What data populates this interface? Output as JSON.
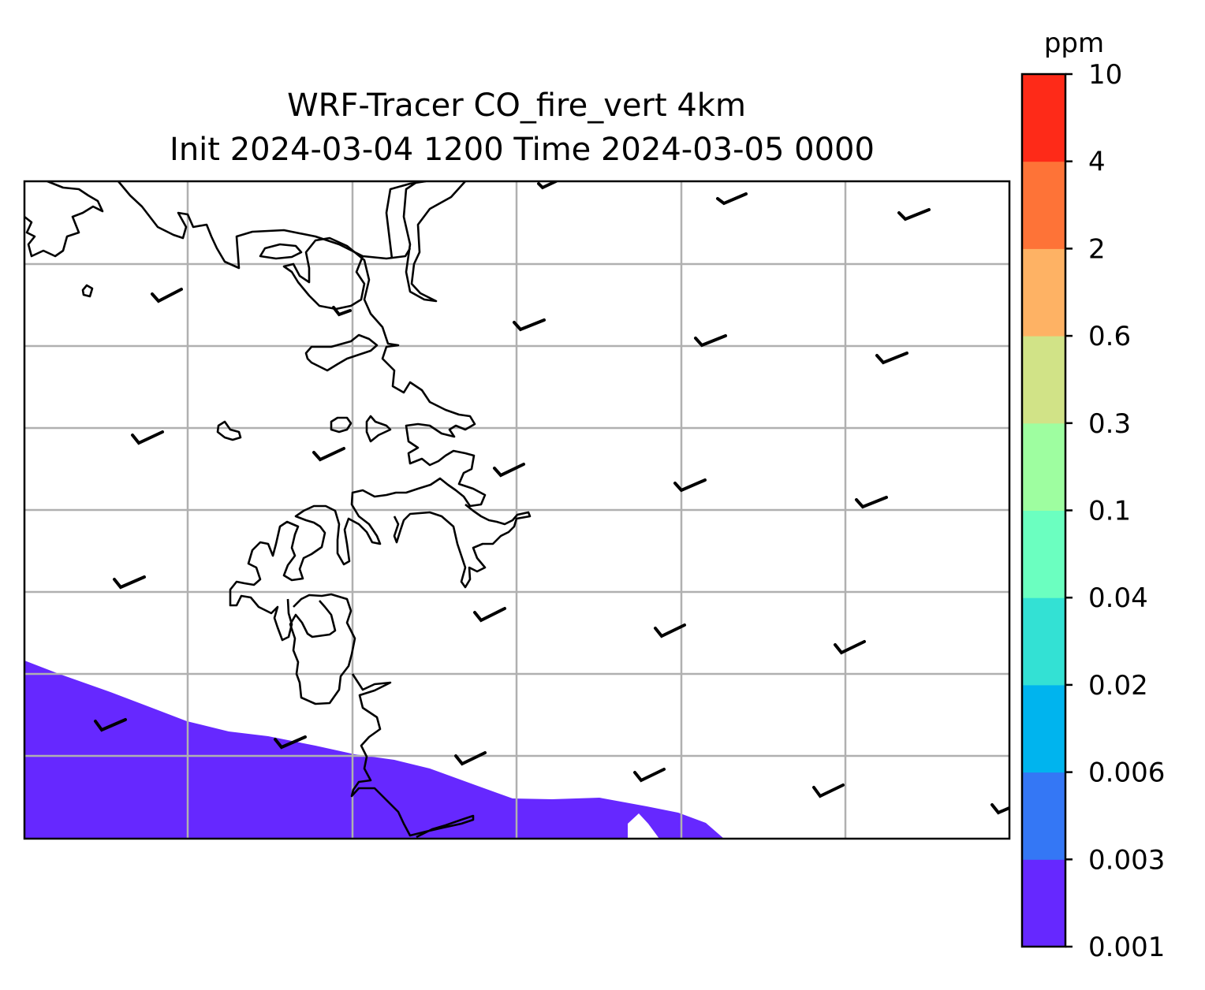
{
  "title": {
    "line1": "WRF-Tracer CO_fire_vert 4km",
    "line2": "Init 2024-03-04 1200 Time 2024-03-05 0000"
  },
  "colorbar": {
    "unit_label": "ppm",
    "levels": [
      "0.001",
      "0.003",
      "0.006",
      "0.02",
      "0.04",
      "0.1",
      "0.3",
      "0.6",
      "2",
      "4",
      "10"
    ],
    "colors": [
      "#6628ff",
      "#3477f5",
      "#00b4ee",
      "#33e1d4",
      "#6bffc0",
      "#9efea0",
      "#d1e387",
      "#feb264",
      "#fe7337",
      "#fe2a18"
    ]
  },
  "map": {
    "filled_level_color": "#6628ff",
    "gridlines": true,
    "wind_barbs": true
  }
}
